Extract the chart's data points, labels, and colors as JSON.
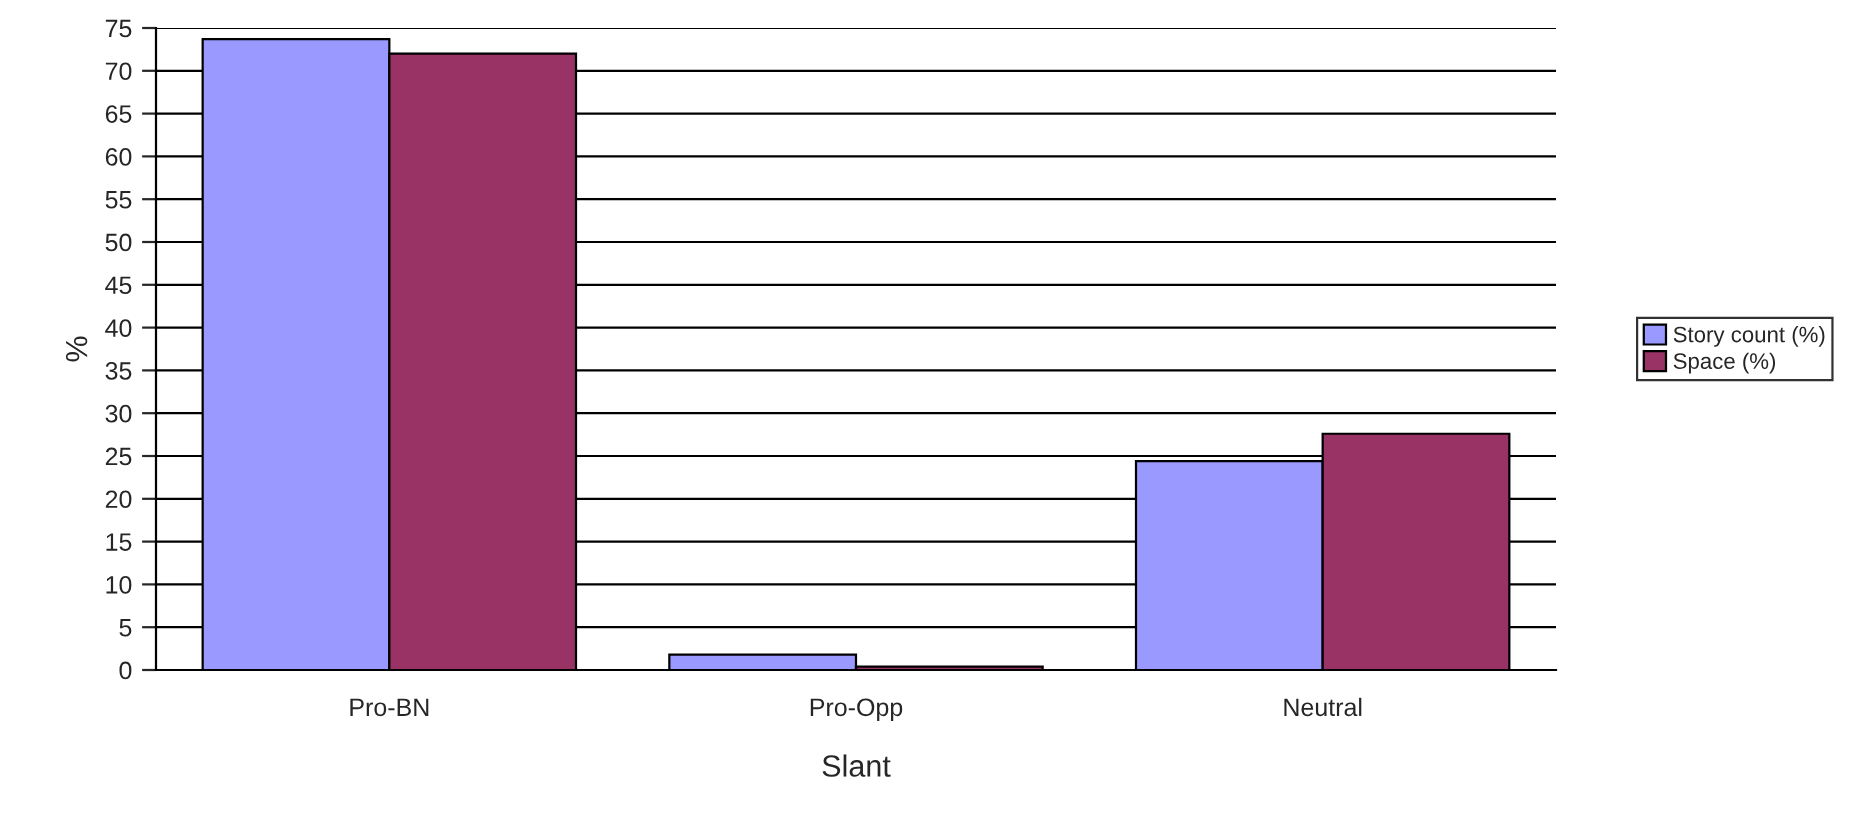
{
  "chart_data": {
    "type": "bar",
    "xlabel": "Slant",
    "ylabel": "%",
    "categories": [
      "Pro-BN",
      "Pro-Opp",
      "Neutral"
    ],
    "series": [
      {
        "name": "Story count (%)",
        "color": "#9999ff",
        "values": [
          73.7,
          1.8,
          24.4
        ]
      },
      {
        "name": "Space (%)",
        "color": "#993366",
        "values": [
          72.0,
          0.4,
          27.6
        ]
      }
    ],
    "ylim": [
      0,
      75
    ],
    "yticks": [
      0,
      5,
      10,
      15,
      20,
      25,
      30,
      35,
      40,
      45,
      50,
      55,
      60,
      65,
      70,
      75
    ],
    "grid": "y",
    "legend": "right"
  }
}
